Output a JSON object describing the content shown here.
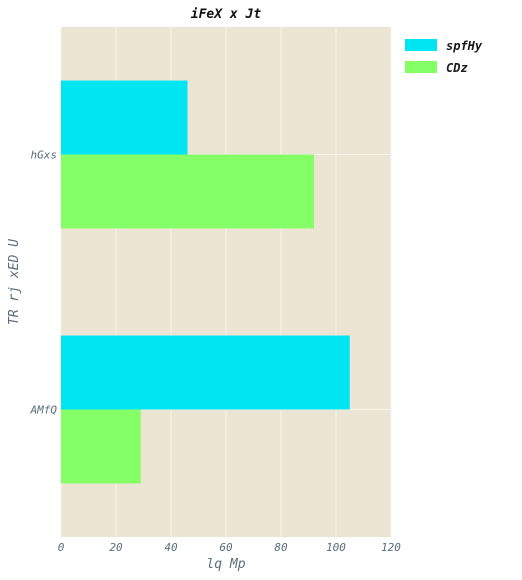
{
  "chart_data": {
    "type": "bar",
    "orientation": "horizontal",
    "title": "iFeX x Jt",
    "xlabel": "lq Mp",
    "ylabel": "TR rj xED U",
    "categories": [
      "hGxs",
      "AMfQ"
    ],
    "series": [
      {
        "name": "spfHy",
        "values": [
          46,
          105
        ],
        "color": "#00e5f2"
      },
      {
        "name": "CDz",
        "values": [
          92,
          29
        ],
        "color": "#84ff66"
      }
    ],
    "xlim": [
      0,
      120
    ],
    "xticks": [
      "0",
      "20",
      "40",
      "60",
      "80",
      "100",
      "120"
    ],
    "grid": true,
    "legend_position": "top-right",
    "plot_background": "#ede5d4",
    "grid_color": "#f8f4ec"
  }
}
